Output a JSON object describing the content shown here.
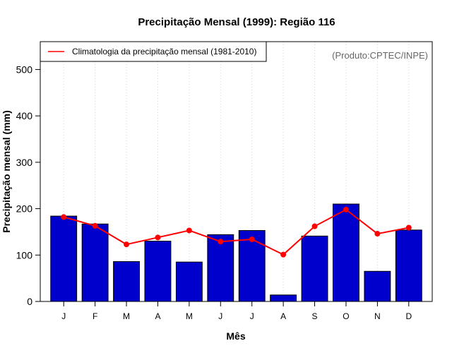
{
  "chart_data": {
    "type": "bar",
    "title": "Precipitação Mensal (1999): Região 116",
    "xlabel": "Mês",
    "ylabel": "Precipitação mensal (mm)",
    "ylim": [
      0,
      560
    ],
    "yticks": [
      0,
      100,
      200,
      300,
      400,
      500
    ],
    "grid": "vertical-dotted",
    "categories": [
      "J",
      "F",
      "M",
      "A",
      "M",
      "J",
      "J",
      "A",
      "S",
      "O",
      "N",
      "D"
    ],
    "series": [
      {
        "name": "Precipitação mensal (1999)",
        "type": "bar",
        "color": "#0000CC",
        "values": [
          184,
          167,
          86,
          130,
          85,
          144,
          153,
          14,
          141,
          210,
          65,
          154
        ]
      },
      {
        "name": "Climatologia da precipitação mensal (1981-2010)",
        "type": "line",
        "color": "#FF0000",
        "values": [
          182,
          163,
          123,
          138,
          153,
          129,
          134,
          101,
          162,
          198,
          146,
          159
        ]
      }
    ],
    "legend": {
      "position": "top-left",
      "label": "Climatologia da precipitação mensal (1981-2010)"
    },
    "annotation": "(Produto:CPTEC/INPE)"
  }
}
